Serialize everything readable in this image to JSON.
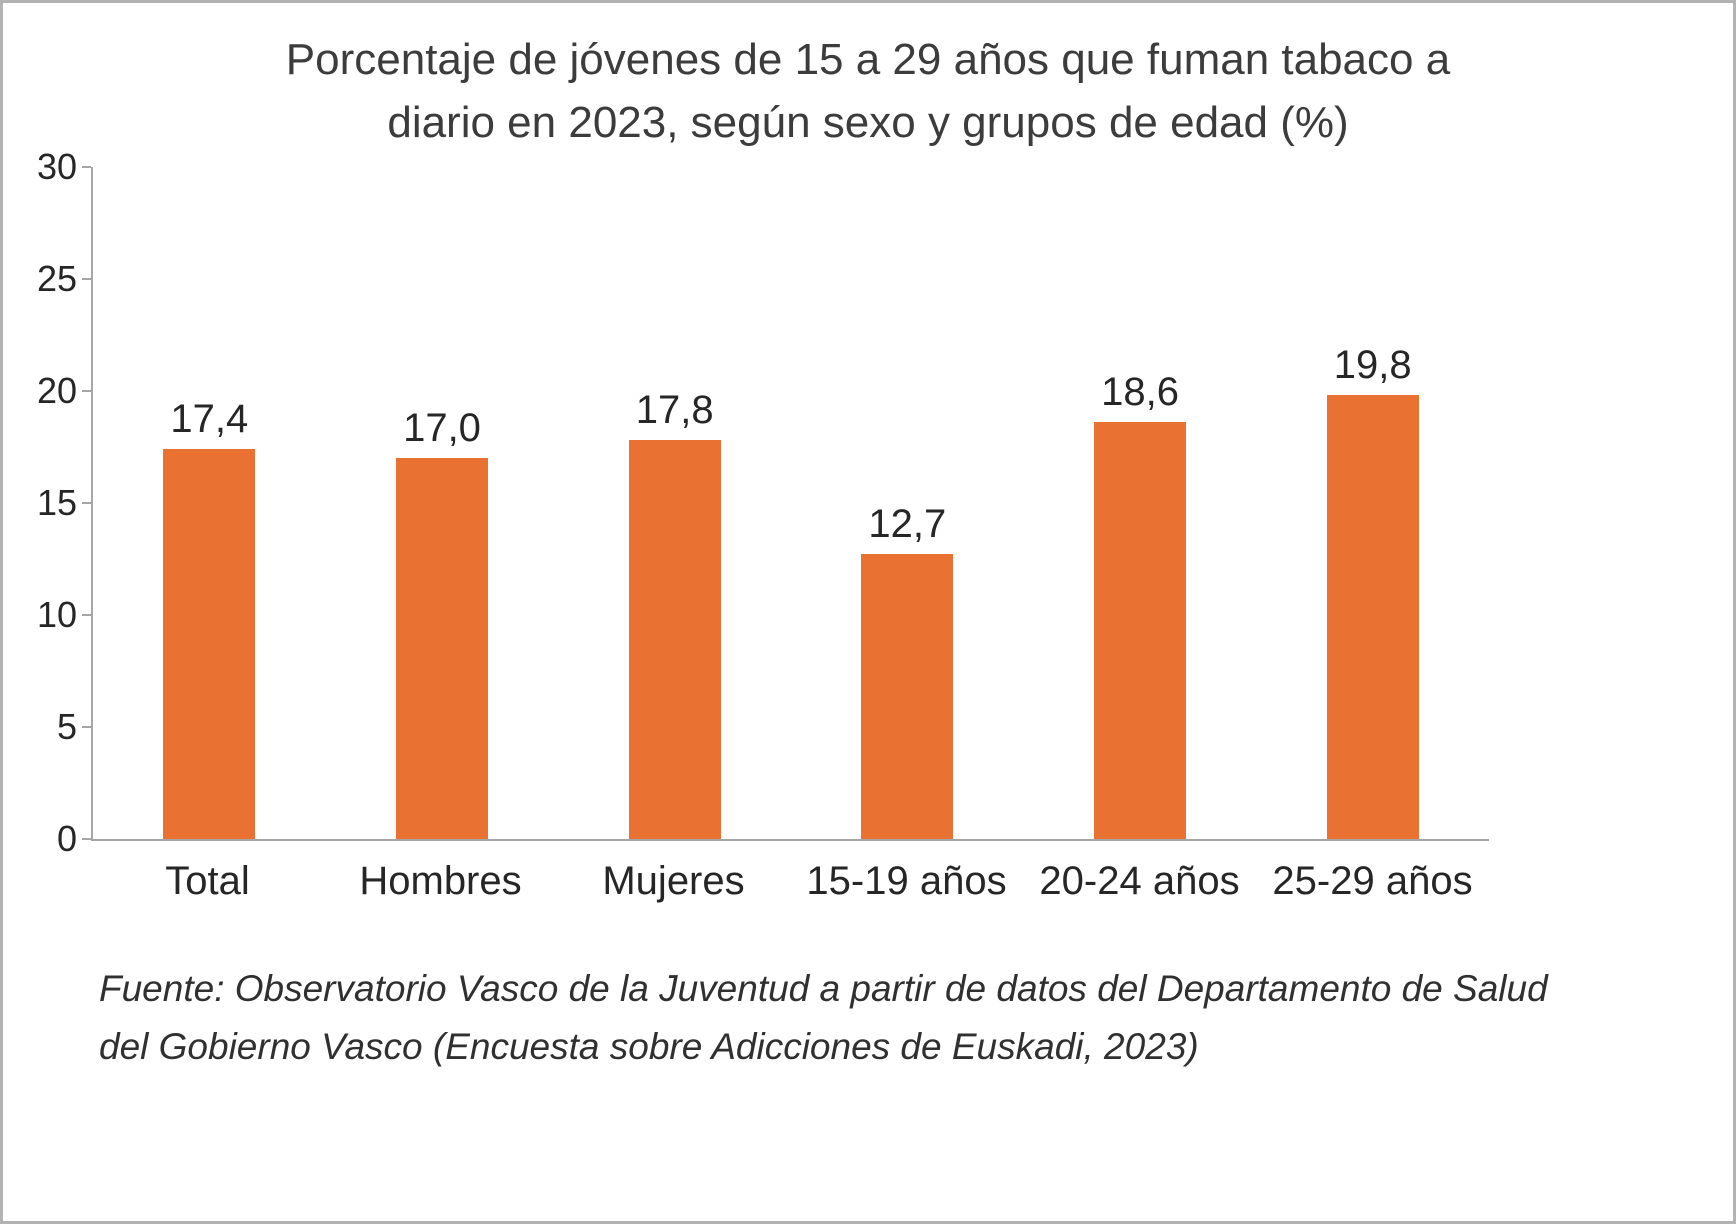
{
  "chart_data": {
    "type": "bar",
    "title": "Porcentaje de jóvenes de 15 a 29 años que fuman tabaco a diario en 2023, según sexo y grupos de edad (%)",
    "categories": [
      "Total",
      "Hombres",
      "Mujeres",
      "15-19 años",
      "20-24 años",
      "25-29 años"
    ],
    "values": [
      17.4,
      17.0,
      17.8,
      12.7,
      18.6,
      19.8
    ],
    "value_labels": [
      "17,4",
      "17,0",
      "17,8",
      "12,7",
      "18,6",
      "19,8"
    ],
    "xlabel": "",
    "ylabel": "",
    "ylim": [
      0,
      30
    ],
    "yticks": [
      0,
      5,
      10,
      15,
      20,
      25,
      30
    ],
    "bar_color": "#E97132",
    "grid": false,
    "legend": false
  },
  "source": "Fuente: Observatorio Vasco de la Juventud a partir de datos del Departamento de Salud del Gobierno Vasco (Encuesta sobre Adicciones de Euskadi, 2023)"
}
